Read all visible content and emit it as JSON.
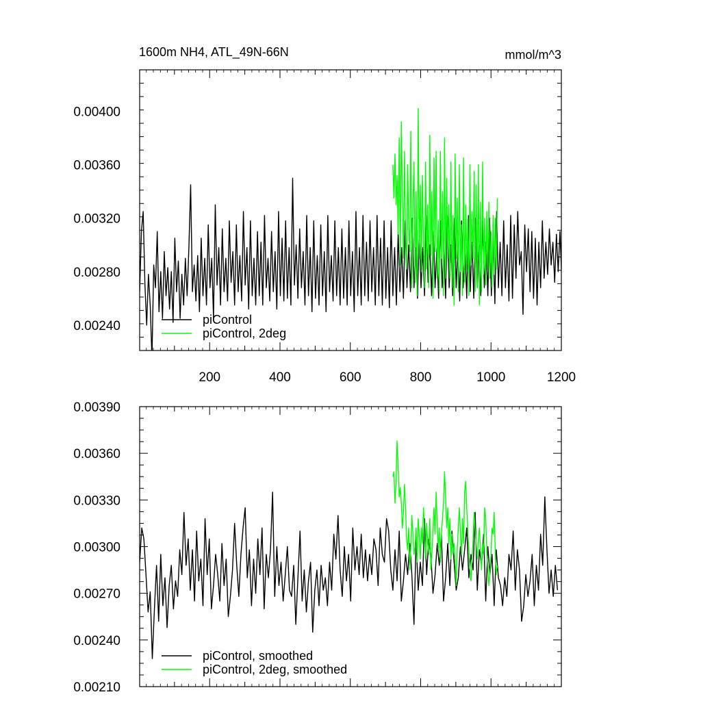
{
  "title_left": "1600m NH4, ATL_49N-66N",
  "title_right": "mmol/m^3",
  "colors": {
    "control": "#000000",
    "twodeg": "#00ff00",
    "axis": "#000000"
  },
  "chart_data": [
    {
      "type": "line",
      "panel": "top",
      "title": "1600m NH4, ATL_49N-66N",
      "units": "mmol/m^3",
      "xlim": [
        1,
        1200
      ],
      "ylim": [
        0.00221,
        0.00431
      ],
      "xticks": [
        200,
        400,
        600,
        800,
        1000,
        1200
      ],
      "xtick_labels": [
        "200",
        "400",
        "600",
        "800",
        "1000",
        "1200"
      ],
      "yticks": [
        0.0024,
        0.0028,
        0.0032,
        0.0036,
        0.004
      ],
      "ytick_labels": [
        "0.00240",
        "0.00280",
        "0.00320",
        "0.00360",
        "0.00400"
      ],
      "legend_position": "bottom-left",
      "series": [
        {
          "name": "piControl",
          "color": "#000000",
          "x_start": 1,
          "x_step": 5,
          "values": [
            0.00265,
            0.0031,
            0.00325,
            0.0027,
            0.0024,
            0.00278,
            0.00255,
            0.00215,
            0.00285,
            0.00268,
            0.0031,
            0.0025,
            0.0028,
            0.00245,
            0.00295,
            0.00262,
            0.00283,
            0.00252,
            0.0028,
            0.00242,
            0.00305,
            0.00265,
            0.00288,
            0.00245,
            0.00278,
            0.00255,
            0.0029,
            0.00262,
            0.00298,
            0.00345,
            0.00265,
            0.00285,
            0.00258,
            0.00292,
            0.0025,
            0.00305,
            0.00262,
            0.0029,
            0.00255,
            0.00315,
            0.00268,
            0.0029,
            0.00245,
            0.0033,
            0.0027,
            0.00298,
            0.00255,
            0.00312,
            0.00265,
            0.0029,
            0.00258,
            0.00318,
            0.00272,
            0.00295,
            0.00255,
            0.00315,
            0.00265,
            0.00292,
            0.00258,
            0.00325,
            0.0027,
            0.00298,
            0.00252,
            0.00318,
            0.00262,
            0.0029,
            0.00255,
            0.0031,
            0.00262,
            0.00302,
            0.00255,
            0.00322,
            0.00268,
            0.0029,
            0.00258,
            0.0031,
            0.00265,
            0.00295,
            0.00252,
            0.00325,
            0.00262,
            0.00305,
            0.00258,
            0.00318,
            0.0026,
            0.00298,
            0.00255,
            0.0035,
            0.0027,
            0.003,
            0.0026,
            0.00312,
            0.00268,
            0.00295,
            0.00255,
            0.00322,
            0.00262,
            0.00298,
            0.0025,
            0.00318,
            0.0026,
            0.00292,
            0.00255,
            0.00315,
            0.00262,
            0.00295,
            0.0025,
            0.00322,
            0.00265,
            0.00292,
            0.00258,
            0.00318,
            0.00262,
            0.00298,
            0.00255,
            0.00312,
            0.0026,
            0.00298,
            0.00255,
            0.00318,
            0.00262,
            0.00295,
            0.0025,
            0.00325,
            0.00262,
            0.00298,
            0.00255,
            0.00322,
            0.00262,
            0.00302,
            0.00258,
            0.00318,
            0.00265,
            0.00298,
            0.00255,
            0.00322,
            0.00262,
            0.00305,
            0.00255,
            0.00318,
            0.0026,
            0.00298,
            0.00253,
            0.00318,
            0.00262,
            0.00298,
            0.00255,
            0.0031,
            0.00265,
            0.00298,
            0.0026,
            0.00318,
            0.00268,
            0.003,
            0.00265,
            0.0032,
            0.00268,
            0.00298,
            0.0026,
            0.0031,
            0.00268,
            0.00298,
            0.00262,
            0.00322,
            0.00272,
            0.003,
            0.00262,
            0.0031,
            0.00268,
            0.00298,
            0.0026,
            0.00318,
            0.00268,
            0.00298,
            0.0026,
            0.00322,
            0.00268,
            0.003,
            0.00262,
            0.0032,
            0.00268,
            0.003,
            0.00258,
            0.00318,
            0.00268,
            0.00298,
            0.0026,
            0.00322,
            0.00265,
            0.00302,
            0.0026,
            0.0032,
            0.00268,
            0.003,
            0.00262,
            0.00318,
            0.00268,
            0.00302,
            0.00262,
            0.0032,
            0.00262,
            0.00302,
            0.00256,
            0.00325,
            0.00268,
            0.00302,
            0.00262,
            0.00318,
            0.00268,
            0.003,
            0.00258,
            0.00322,
            0.0026,
            0.00315,
            0.00275,
            0.00325,
            0.00285,
            0.00295,
            0.00248,
            0.00315,
            0.0028,
            0.00312,
            0.00265,
            0.0031,
            0.0026,
            0.00305,
            0.00255,
            0.00302,
            0.00268,
            0.00318,
            0.00275,
            0.00302,
            0.00278,
            0.00312,
            0.00285,
            0.00302,
            0.00272,
            0.00308,
            0.0028,
            0.0031,
            0.00275,
            0.00355,
            0.00275,
            0.00295,
            0.0024,
            0.00262
          ]
        },
        {
          "name": "piControl, 2deg",
          "color": "#00ff00",
          "x_start": 721,
          "x_step": 3,
          "values": [
            0.0036,
            0.00335,
            0.00368,
            0.0033,
            0.00352,
            0.00308,
            0.0038,
            0.00285,
            0.00392,
            0.0034,
            0.0029,
            0.0037,
            0.0031,
            0.00282,
            0.0036,
            0.00312,
            0.00295,
            0.00385,
            0.00268,
            0.0033,
            0.00362,
            0.00272,
            0.0034,
            0.00262,
            0.00402,
            0.0029,
            0.00345,
            0.0028,
            0.00352,
            0.00302,
            0.00268,
            0.00362,
            0.00282,
            0.0033,
            0.00268,
            0.00382,
            0.00292,
            0.0034,
            0.0026,
            0.00365,
            0.00295,
            0.0037,
            0.00275,
            0.00318,
            0.00265,
            0.0037,
            0.0029,
            0.0034,
            0.00262,
            0.0038,
            0.00275,
            0.0035,
            0.0029,
            0.0033,
            0.00275,
            0.00362,
            0.00268,
            0.00322,
            0.00255,
            0.00368,
            0.0029,
            0.00335,
            0.00265,
            0.0036,
            0.0028,
            0.00315,
            0.00262,
            0.00365,
            0.00272,
            0.0033,
            0.0028,
            0.0032,
            0.00262,
            0.0036,
            0.00285,
            0.00325,
            0.0029,
            0.00355,
            0.00265,
            0.00345,
            0.00268,
            0.0036,
            0.00255,
            0.00332,
            0.00265,
            0.00362,
            0.00278,
            0.0032,
            0.0027,
            0.00325,
            0.00282,
            0.00332,
            0.00275,
            0.0031,
            0.00268,
            0.00322,
            0.00278,
            0.0032,
            0.00282,
            0.00335
          ]
        }
      ]
    },
    {
      "type": "line",
      "panel": "bottom",
      "xlim": [
        1,
        1200
      ],
      "ylim": [
        0.0021,
        0.0039
      ],
      "xticks": [
        200,
        400,
        600,
        800,
        1000,
        1200
      ],
      "yticks": [
        0.0021,
        0.0024,
        0.0027,
        0.003,
        0.0033,
        0.0036,
        0.0039
      ],
      "ytick_labels": [
        "0.00210",
        "0.00240",
        "0.00270",
        "0.00300",
        "0.00330",
        "0.00360",
        "0.00390"
      ],
      "legend_position": "bottom-left",
      "series": [
        {
          "name": "piControl, smoothed",
          "color": "#000000",
          "x_start": 1,
          "x_step": 6,
          "values": [
            0.0029,
            0.00312,
            0.00305,
            0.00282,
            0.00258,
            0.00271,
            0.00228,
            0.0026,
            0.00288,
            0.00252,
            0.00295,
            0.00262,
            0.0028,
            0.00248,
            0.00275,
            0.00288,
            0.0026,
            0.00278,
            0.00268,
            0.00298,
            0.00282,
            0.00322,
            0.00288,
            0.00305,
            0.00272,
            0.00298,
            0.00265,
            0.0031,
            0.00278,
            0.00292,
            0.00262,
            0.00318,
            0.00282,
            0.00305,
            0.0026,
            0.00275,
            0.00295,
            0.00282,
            0.00265,
            0.00302,
            0.00275,
            0.00292,
            0.00255,
            0.00268,
            0.00285,
            0.00315,
            0.00288,
            0.00268,
            0.00295,
            0.00312,
            0.00325,
            0.0028,
            0.00298,
            0.00262,
            0.00292,
            0.0027,
            0.00305,
            0.00282,
            0.00312,
            0.0026,
            0.00295,
            0.0028,
            0.00298,
            0.00335,
            0.00268,
            0.003,
            0.00275,
            0.0029,
            0.00265,
            0.00282,
            0.003,
            0.00272,
            0.00268,
            0.00288,
            0.0025,
            0.0028,
            0.0031,
            0.00265,
            0.00285,
            0.00258,
            0.00278,
            0.0029,
            0.00245,
            0.00272,
            0.00285,
            0.00262,
            0.00288,
            0.00272,
            0.0028,
            0.00262,
            0.0029,
            0.00272,
            0.00308,
            0.00292,
            0.0032,
            0.00285,
            0.00268,
            0.003,
            0.00278,
            0.00295,
            0.00265,
            0.00312,
            0.00285,
            0.003,
            0.00282,
            0.00308,
            0.0028,
            0.00298,
            0.00278,
            0.00295,
            0.00282,
            0.00305,
            0.00298,
            0.00275,
            0.00312,
            0.00295,
            0.0029,
            0.00318,
            0.0031,
            0.00285,
            0.00272,
            0.00298,
            0.00278,
            0.0031,
            0.00265,
            0.00278,
            0.00295,
            0.00282,
            0.00302,
            0.00282,
            0.0025,
            0.00305,
            0.00272,
            0.0029,
            0.00275,
            0.00318,
            0.00282,
            0.00305,
            0.00295,
            0.0027,
            0.00282,
            0.00302,
            0.00288,
            0.00308,
            0.00265,
            0.0028,
            0.00302,
            0.00275,
            0.0031,
            0.0029,
            0.00272,
            0.0028,
            0.003,
            0.00285,
            0.00298,
            0.00312,
            0.0028,
            0.00295,
            0.00285,
            0.00322,
            0.00272,
            0.00298,
            0.00288,
            0.00308,
            0.00265,
            0.003,
            0.00282,
            0.00295,
            0.00262,
            0.00298,
            0.0028,
            0.00275,
            0.00262,
            0.0028,
            0.00268,
            0.00295,
            0.00285,
            0.0031,
            0.00272,
            0.00298,
            0.00285,
            0.00252,
            0.00262,
            0.00282,
            0.00268,
            0.00278,
            0.00295,
            0.00262,
            0.00288,
            0.00272,
            0.00308,
            0.00288,
            0.00332,
            0.00298,
            0.0027,
            0.00285,
            0.00268,
            0.00288,
            0.00272
          ]
        },
        {
          "name": "piControl, 2deg, smoothed",
          "color": "#00ff00",
          "x_start": 721,
          "x_step": 3,
          "values": [
            0.00345,
            0.00348,
            0.00328,
            0.00342,
            0.00368,
            0.00352,
            0.00332,
            0.00338,
            0.00328,
            0.00312,
            0.00322,
            0.0034,
            0.00325,
            0.00305,
            0.00298,
            0.00312,
            0.00285,
            0.003,
            0.0032,
            0.00308,
            0.00295,
            0.003,
            0.00312,
            0.0029,
            0.00318,
            0.00308,
            0.00292,
            0.00312,
            0.00302,
            0.00325,
            0.0031,
            0.00292,
            0.00315,
            0.00302,
            0.00295,
            0.00318,
            0.00285,
            0.00295,
            0.00312,
            0.00325,
            0.00308,
            0.00335,
            0.00315,
            0.00298,
            0.00312,
            0.0029,
            0.00308,
            0.00318,
            0.00328,
            0.00348,
            0.00332,
            0.00312,
            0.00325,
            0.00302,
            0.00318,
            0.00292,
            0.00308,
            0.00295,
            0.00302,
            0.0029,
            0.00275,
            0.00298,
            0.00312,
            0.00325,
            0.00308,
            0.00295,
            0.00318,
            0.00302,
            0.00335,
            0.00342,
            0.00325,
            0.0031,
            0.00298,
            0.00285,
            0.00278,
            0.00292,
            0.00305,
            0.00322,
            0.0031,
            0.00302,
            0.00292,
            0.00305,
            0.00312,
            0.00298,
            0.00285,
            0.00302,
            0.00295,
            0.00325,
            0.00318,
            0.00298,
            0.00285,
            0.00275,
            0.00282,
            0.00295,
            0.00312,
            0.00308,
            0.00322,
            0.00298,
            0.00282,
            0.00288
          ]
        }
      ]
    }
  ]
}
